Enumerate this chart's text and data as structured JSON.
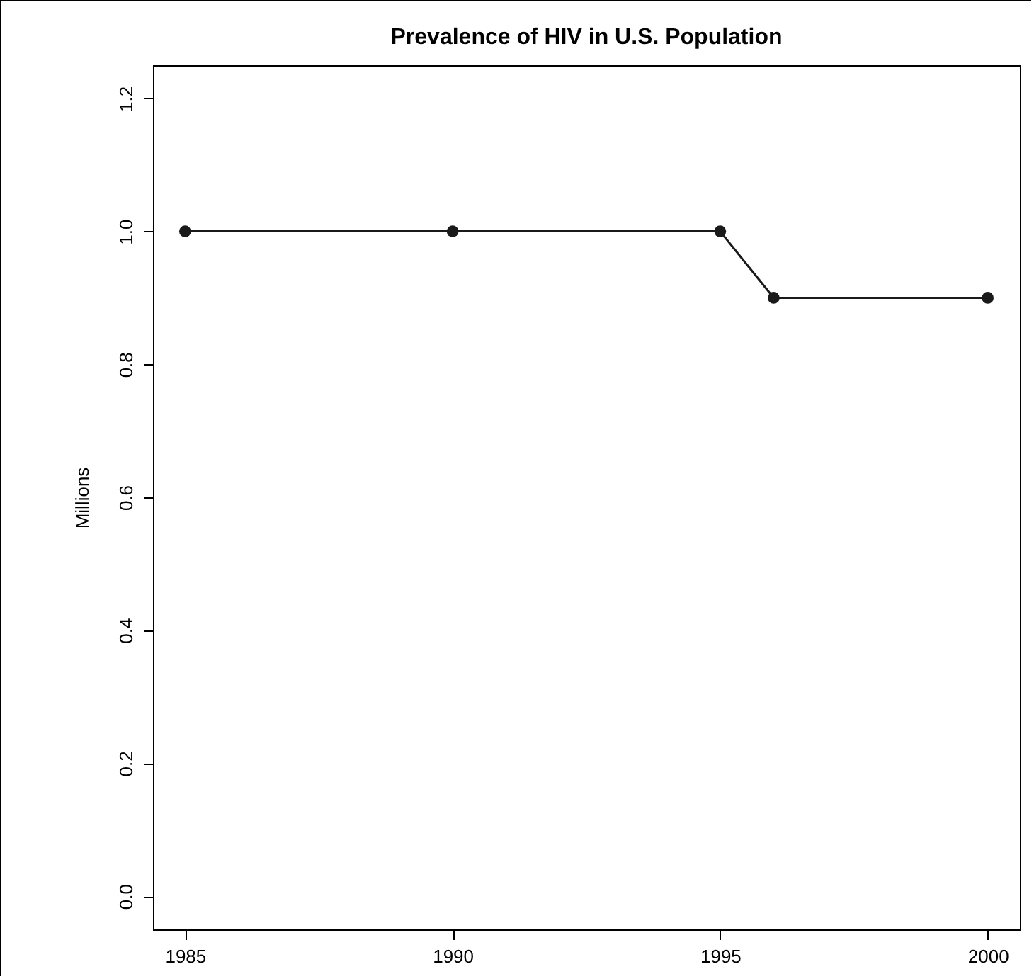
{
  "chart_data": {
    "type": "line",
    "title": "Prevalence of HIV in U.S. Population",
    "ylabel": "Millions",
    "x": [
      1985,
      1990,
      1995,
      1996,
      2000
    ],
    "series": [
      {
        "color": "#1a1a1a",
        "values": [
          1.0,
          1.0,
          1.0,
          0.9,
          0.9
        ]
      }
    ],
    "xlim": [
      1984.4,
      2000.6
    ],
    "xticks": [
      1985,
      1990,
      1995,
      2000
    ],
    "ylim": [
      -0.05,
      1.25
    ],
    "yticks": [
      {
        "value": 0,
        "label": "0.0"
      },
      {
        "value": 0.2,
        "label": "0.2"
      },
      {
        "value": 0.4,
        "label": "0.4"
      },
      {
        "value": 0.6,
        "label": "0.6"
      },
      {
        "value": 0.8,
        "label": "0.8"
      },
      {
        "value": 1,
        "label": "1.0"
      },
      {
        "value": 1.2,
        "label": "1.2"
      }
    ],
    "grid": false,
    "marker": "circle",
    "line_style": "solid"
  }
}
